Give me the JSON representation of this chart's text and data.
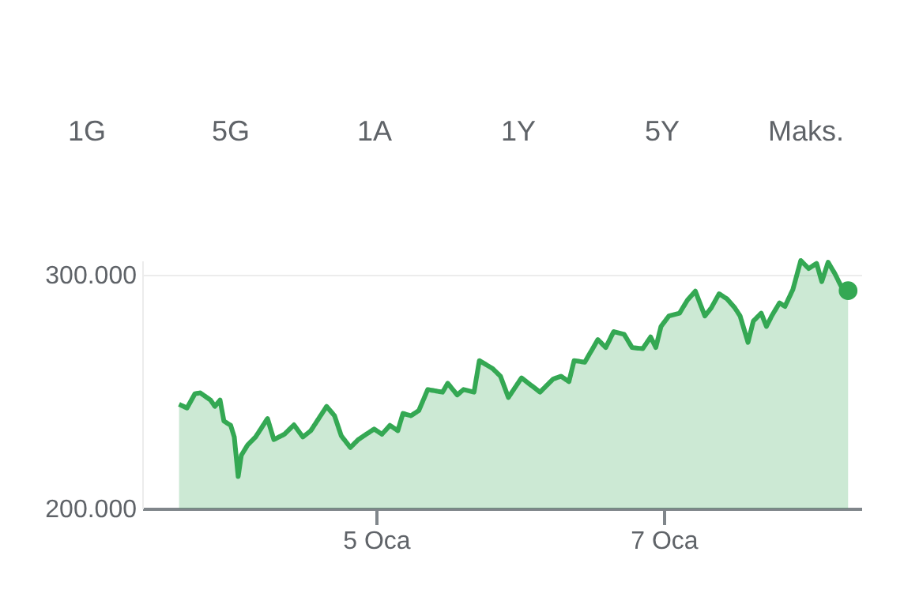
{
  "chart_data": {
    "type": "area",
    "annotations": [
      "1G",
      "5G",
      "1A",
      "1Y",
      "5Y",
      "Maks."
    ],
    "x": [
      3.63,
      3.685,
      3.74,
      3.777,
      3.849,
      3.879,
      3.915,
      3.942,
      3.989,
      4.014,
      4.041,
      4.063,
      4.107,
      4.162,
      4.245,
      4.289,
      4.363,
      4.429,
      4.491,
      4.546,
      4.656,
      4.711,
      4.758,
      4.821,
      4.876,
      4.986,
      5.041,
      5.096,
      5.151,
      5.187,
      5.242,
      5.297,
      5.359,
      5.462,
      5.498,
      5.564,
      5.608,
      5.681,
      5.718,
      5.81,
      5.865,
      5.92,
      6.011,
      6.14,
      6.231,
      6.286,
      6.341,
      6.377,
      6.451,
      6.542,
      6.597,
      6.652,
      6.725,
      6.78,
      6.854,
      6.909,
      6.945,
      6.981,
      7.036,
      7.11,
      7.165,
      7.22,
      7.286,
      7.33,
      7.385,
      7.44,
      7.495,
      7.531,
      7.586,
      7.623,
      7.678,
      7.714,
      7.751,
      7.805,
      7.843,
      7.898,
      7.953,
      8.008,
      8.063,
      8.099,
      8.143,
      8.19,
      8.245,
      8.282
    ],
    "series": [
      {
        "color": "#34a853",
        "values": [
          244600,
          243000,
          249100,
          249500,
          246400,
          243700,
          246400,
          237400,
          235600,
          230600,
          213700,
          222800,
          227200,
          230600,
          238500,
          229500,
          231800,
          235800,
          230600,
          233300,
          243700,
          239700,
          231100,
          226100,
          229500,
          234000,
          231800,
          235600,
          233300,
          240700,
          239700,
          241900,
          250900,
          249800,
          253600,
          248600,
          250900,
          249800,
          263300,
          259900,
          256600,
          247500,
          255900,
          249800,
          255400,
          256600,
          254300,
          263300,
          262600,
          272300,
          268900,
          275700,
          274500,
          268900,
          268400,
          273400,
          268900,
          277900,
          282400,
          283600,
          289200,
          293000,
          282400,
          285800,
          291900,
          289700,
          285800,
          282400,
          271100,
          280200,
          283600,
          277900,
          282400,
          288000,
          286500,
          293700,
          306100,
          302700,
          304900,
          297100,
          305400,
          300500,
          293700,
          293200
        ]
      }
    ],
    "xlim": [
      3.374,
      8.374
    ],
    "xticks": [
      {
        "value": 5,
        "label": "5 Oca"
      },
      {
        "value": 7,
        "label": "7 Oca"
      }
    ],
    "ylim": [
      200000,
      306100
    ],
    "yticks": [
      {
        "value": 200000,
        "label": "200.000"
      },
      {
        "value": 300000,
        "label": "300.000"
      }
    ],
    "grid": "y",
    "marker": "none",
    "line_style": "solid"
  }
}
